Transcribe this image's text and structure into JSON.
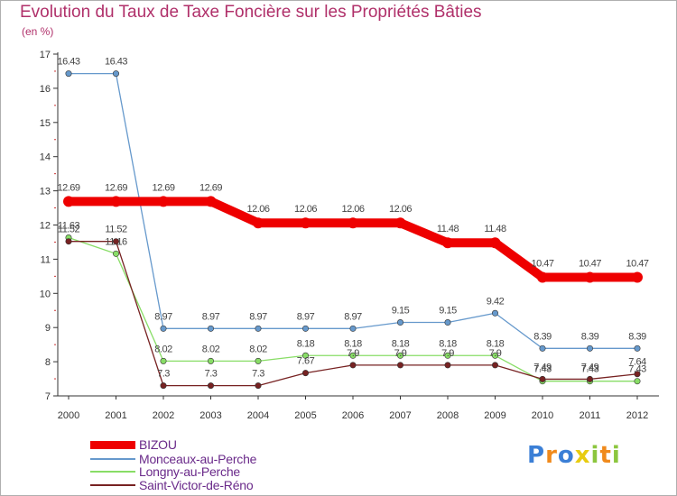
{
  "chart_data": {
    "type": "line",
    "title": "Evolution du Taux de Taxe Foncière sur les Propriétés Bâties",
    "unit_label": "(en %)",
    "x": [
      "2000",
      "2001",
      "2002",
      "2003",
      "2004",
      "2005",
      "2006",
      "2007",
      "2008",
      "2009",
      "2010",
      "2011",
      "2012"
    ],
    "ylim": [
      7,
      17
    ],
    "yticks": [
      7,
      8,
      9,
      10,
      11,
      12,
      13,
      14,
      15,
      16,
      17
    ],
    "series": [
      {
        "name": "BIZOU",
        "color": "#ee0000",
        "values": [
          12.69,
          12.69,
          12.69,
          12.69,
          12.06,
          12.06,
          12.06,
          12.06,
          11.48,
          11.48,
          10.47,
          10.47,
          10.47
        ],
        "labels": [
          "12.69",
          "12.69",
          "12.69",
          "12.69",
          "12.06",
          "12.06",
          "12.06",
          "12.06",
          "11.48",
          "11.48",
          "10.47",
          "10.47",
          "10.47"
        ]
      },
      {
        "name": "Monceaux-au-Perche",
        "color": "#6699cc",
        "values": [
          16.43,
          16.43,
          8.97,
          8.97,
          8.97,
          8.97,
          8.97,
          9.15,
          9.15,
          9.42,
          8.39,
          8.39,
          8.39
        ],
        "labels": [
          "16.43",
          "16.43",
          "8.97",
          "8.97",
          "8.97",
          "8.97",
          "8.97",
          "9.15",
          "9.15",
          "9.42",
          "8.39",
          "8.39",
          "8.39"
        ]
      },
      {
        "name": "Longny-au-Perche",
        "color": "#88dd66",
        "values": [
          11.63,
          11.16,
          8.02,
          8.02,
          8.02,
          8.18,
          8.18,
          8.18,
          8.18,
          8.18,
          7.43,
          7.43,
          7.43
        ],
        "labels": [
          "11.63",
          "11.16",
          "8.02",
          "8.02",
          "8.02",
          "8.18",
          "8.18",
          "8.18",
          "8.18",
          "8.18",
          "7.43",
          "7.43",
          "7.43"
        ]
      },
      {
        "name": "Saint-Victor-de-Réno",
        "color": "#772222",
        "values": [
          11.52,
          11.52,
          7.3,
          7.3,
          7.3,
          7.67,
          7.9,
          7.9,
          7.9,
          7.9,
          7.49,
          7.49,
          7.64
        ],
        "labels": [
          "11.52",
          "11.52",
          "7.3",
          "7.3",
          "7.3",
          "7.67",
          "7.9",
          "7.9",
          "7.9",
          "7.9",
          "7.49",
          "7.49",
          "7.64"
        ]
      }
    ]
  },
  "logo": {
    "text": "Proxiti",
    "letters": [
      "P",
      "r",
      "o",
      "x",
      "i",
      "t",
      "i"
    ],
    "colors": [
      "#3b7fd6",
      "#f08a1c",
      "#3b7fd6",
      "#e8cc10",
      "#8cc63e",
      "#f08a1c",
      "#8cc63e"
    ]
  }
}
